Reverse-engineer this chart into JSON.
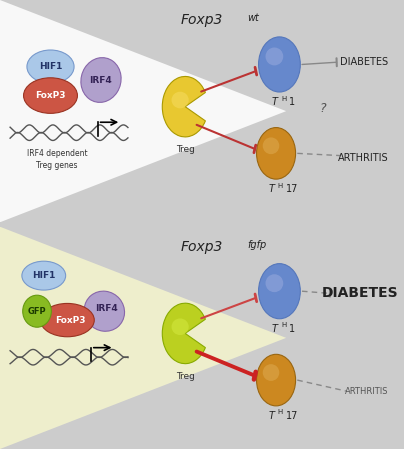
{
  "bg_top": "#e8e8e8",
  "bg_bottom": "#e0e4b0",
  "triangle_color_top": "#f8f8f8",
  "triangle_color_bottom": "#eeeecc",
  "hif1_color": "#aac8e8",
  "foxp3_color": "#cc5544",
  "irf4_color": "#b0a0cc",
  "gfp_color": "#88bb22",
  "treg_color_top": "#e8c830",
  "treg_highlight_top": "#f5dc60",
  "treg_color_bottom": "#bbd020",
  "treg_highlight_bottom": "#d4e840",
  "th1_color": "#6688cc",
  "th1_highlight": "#99aadd",
  "th17_color": "#cc8820",
  "th17_highlight": "#ddaa50",
  "inhibit_top": "#bb3333",
  "inhibit_bottom_th1": "#cc4444",
  "inhibit_bottom_th17": "#cc2222",
  "arrow_gray": "#888888",
  "dna_color": "#555555",
  "text_color": "#222222",
  "title_top": "Foxp3",
  "title_top_sup": "wt",
  "title_bottom": "Foxp3",
  "title_bottom_sup": "fgfp",
  "irfdep": "IRF4 dependent\nTreg genes"
}
